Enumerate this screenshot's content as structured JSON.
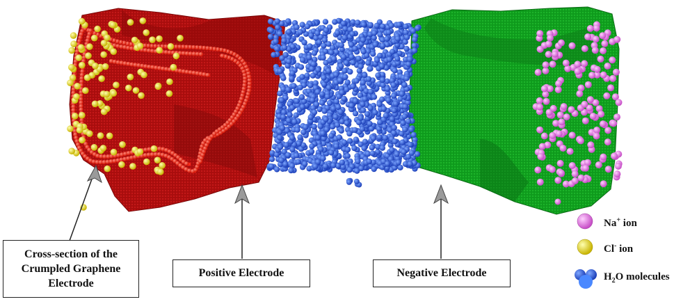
{
  "labels": {
    "cross_section_line1": "Cross-section of the",
    "cross_section_line2": "Crumpled Graphene",
    "cross_section_line3": "Electrode",
    "positive_electrode": "Positive Electrode",
    "negative_electrode": "Negative Electrode"
  },
  "legend": {
    "na_symbol": "Na",
    "na_charge": "+",
    "na_suffix": " ion",
    "cl_symbol": "Cl",
    "cl_charge": "-",
    "cl_suffix": " ion",
    "h2o_prefix": "H",
    "h2o_sub": "2",
    "h2o_suffix": "O molecules"
  },
  "colors": {
    "positive_electrode": "#b01010",
    "positive_electrode_edge": "#ff2a1a",
    "negative_electrode": "#10a020",
    "water": "#2a5cd8",
    "na_ion": "#e878e8",
    "cl_ion": "#f2e21a"
  }
}
